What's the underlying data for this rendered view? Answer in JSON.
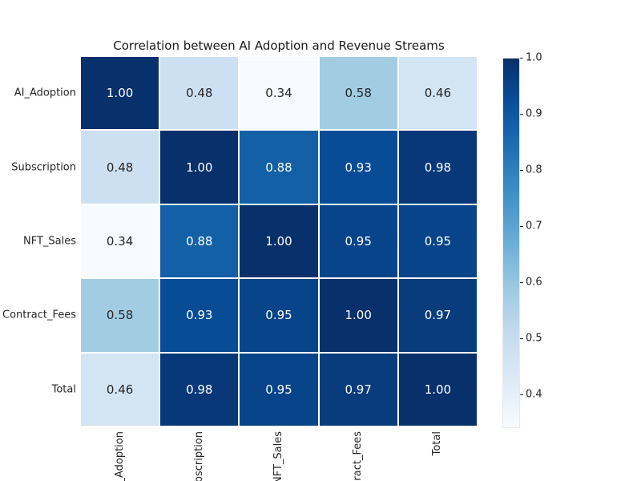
{
  "title": "Correlation between AI Adoption and Revenue Streams",
  "chart_data": {
    "type": "heatmap",
    "title": "Correlation between AI Adoption and Revenue Streams",
    "row_labels": [
      "AI_Adoption",
      "Subscription",
      "NFT_Sales",
      "Contract_Fees",
      "Total"
    ],
    "col_labels": [
      "AI_Adoption",
      "Subscription",
      "NFT_Sales",
      "Contract_Fees",
      "Total"
    ],
    "matrix": [
      [
        1.0,
        0.48,
        0.34,
        0.58,
        0.46
      ],
      [
        0.48,
        1.0,
        0.88,
        0.93,
        0.98
      ],
      [
        0.34,
        0.88,
        1.0,
        0.95,
        0.95
      ],
      [
        0.58,
        0.93,
        0.95,
        1.0,
        0.97
      ],
      [
        0.46,
        0.98,
        0.95,
        0.97,
        1.0
      ]
    ],
    "vmin": 0.34,
    "vmax": 1.0,
    "colormap": "Blues",
    "colormap_stops": [
      "#f7fbff",
      "#deebf7",
      "#c6dbef",
      "#9ecae1",
      "#6baed6",
      "#4292c6",
      "#2171b5",
      "#08519c",
      "#08306b"
    ],
    "colorbar_ticks": [
      1.0,
      0.9,
      0.8,
      0.7,
      0.6,
      0.5,
      0.4
    ],
    "cell_text_light": "#ffffff",
    "cell_text_dark": "#262626",
    "background": "#ffffff",
    "legend_position": "right",
    "grid": false
  }
}
